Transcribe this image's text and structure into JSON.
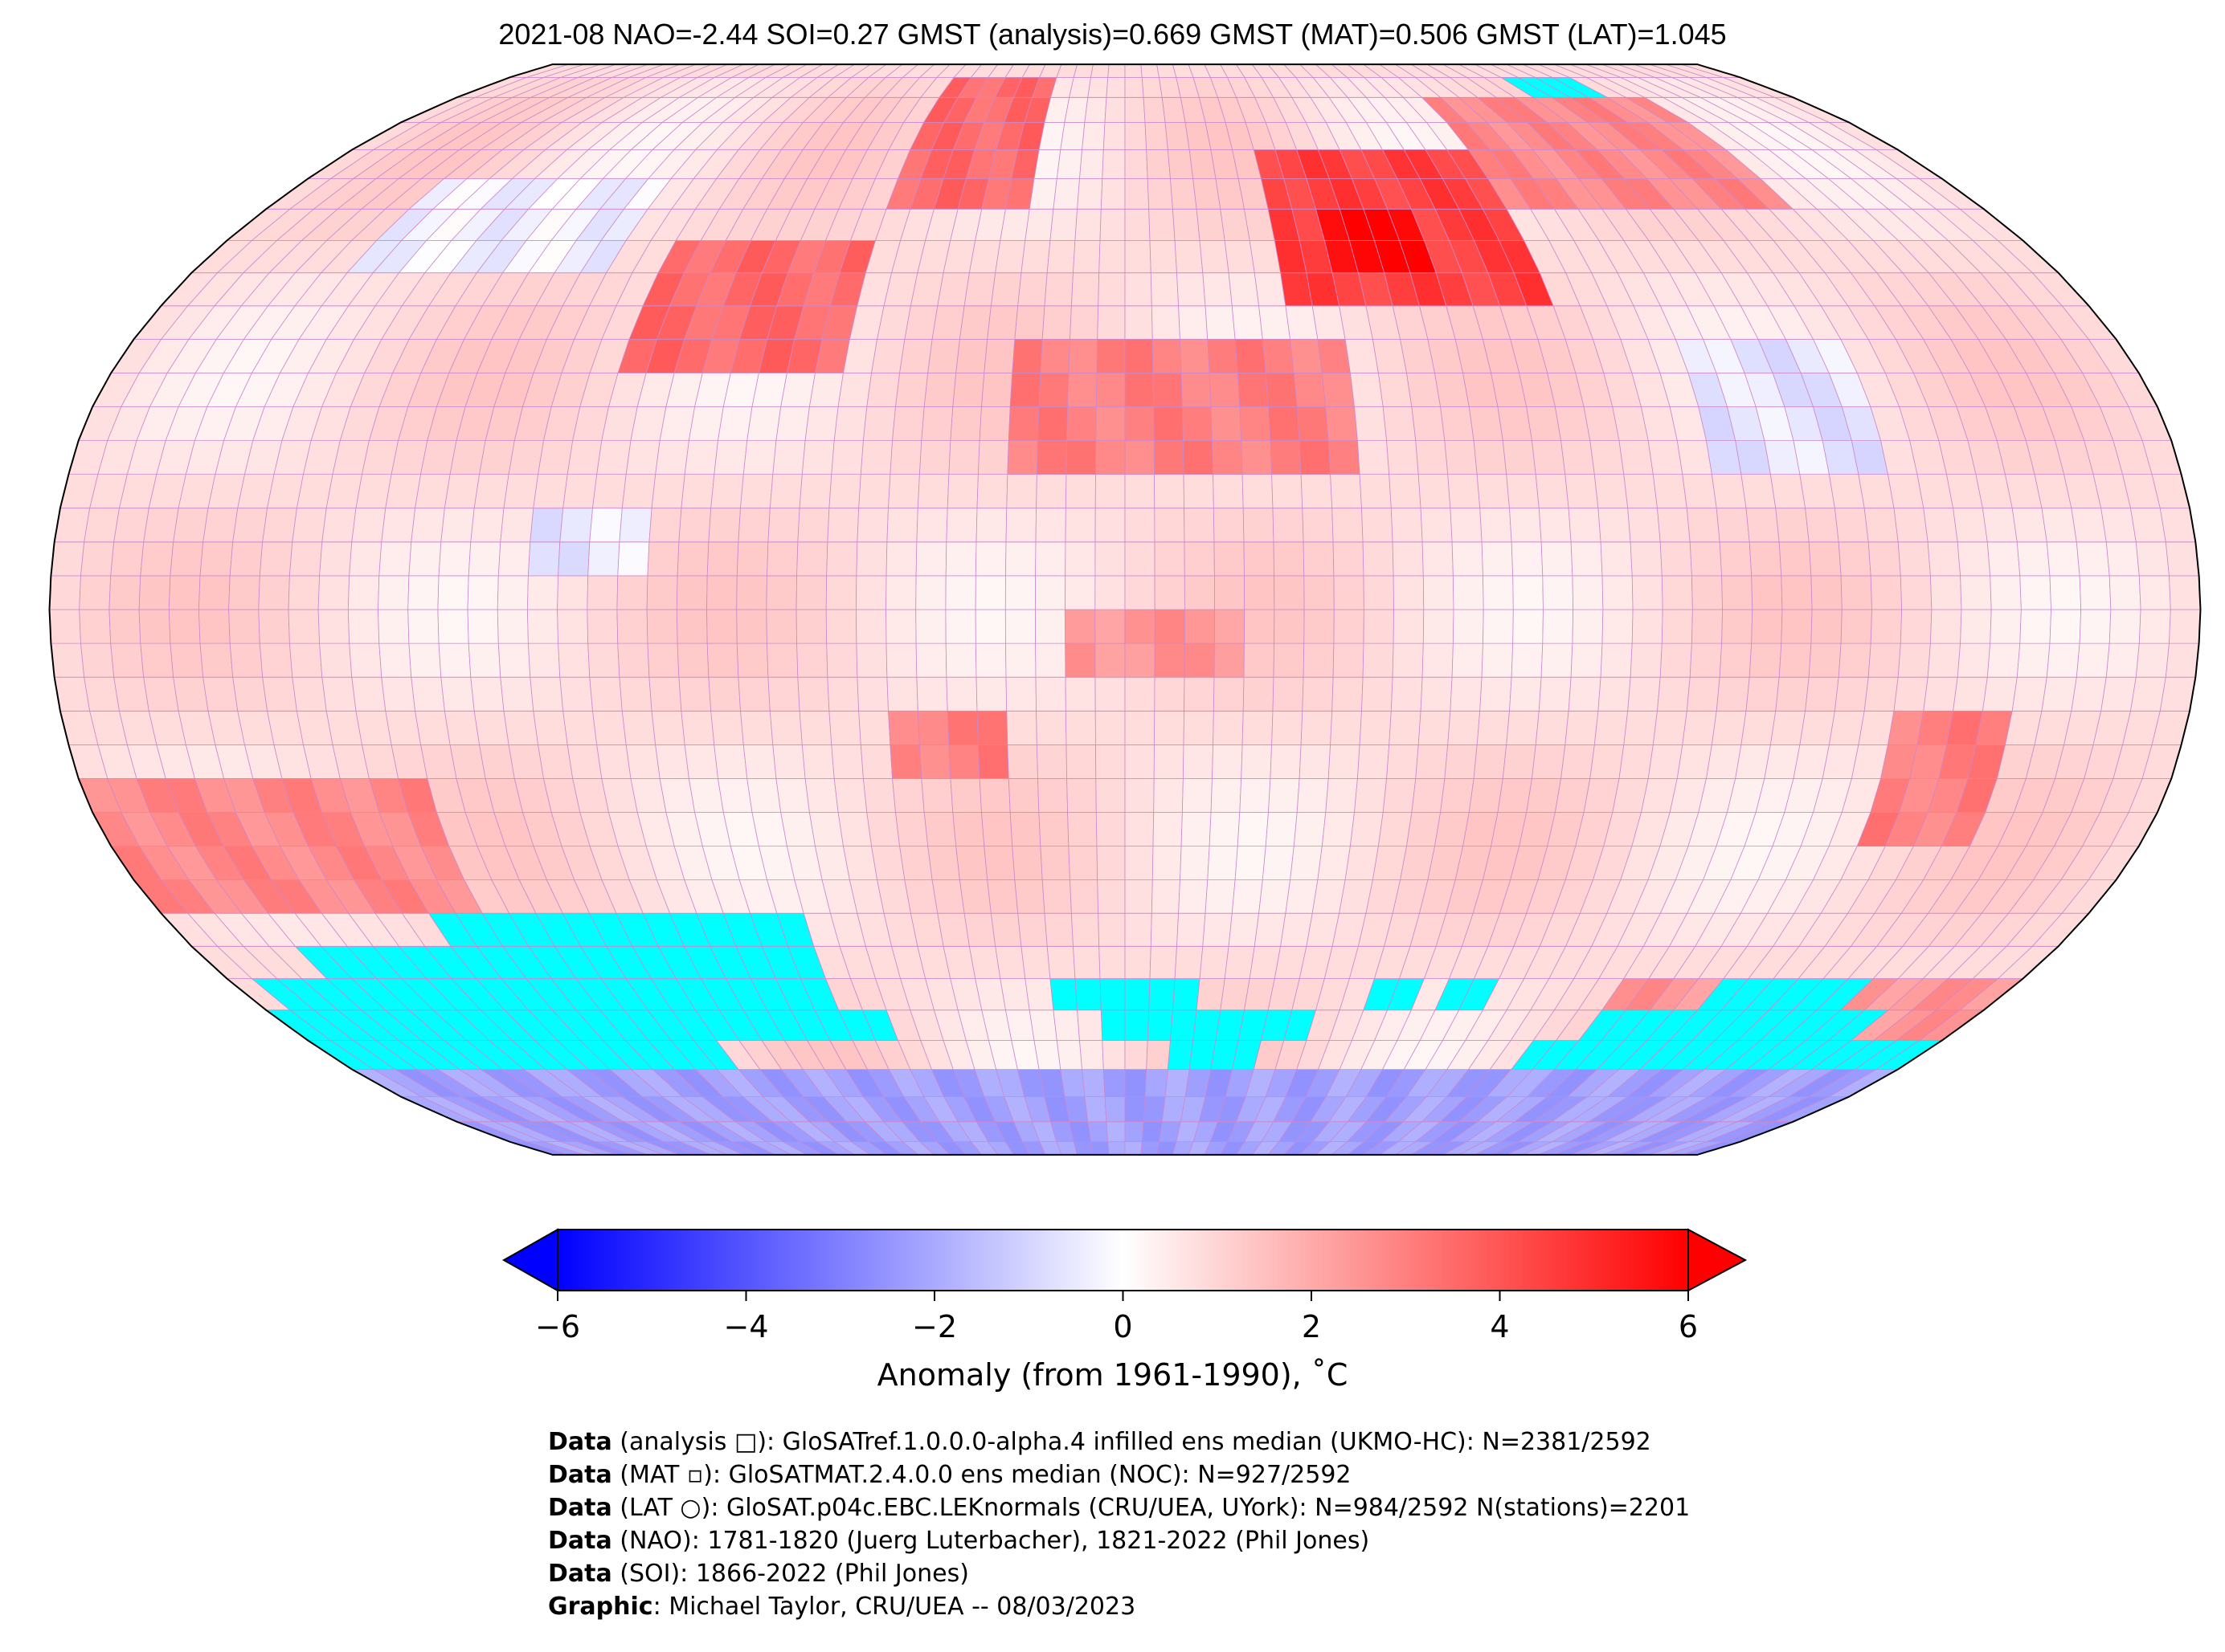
{
  "title": "2021-08 NAO=-2.44 SOI=0.27 GMST (analysis)=0.669 GMST (MAT)=0.506 GMST (LAT)=1.045",
  "map": {
    "projection": "Robinson",
    "grid_resolution_deg": 5,
    "colors": {
      "cold": "#0000ff",
      "neutral": "#ffffff",
      "warm": "#ff0000",
      "missing": "#00ffff",
      "gridline": "#cc88cc"
    },
    "base_anomaly": 0.8,
    "regions": [
      {
        "lon": [
          -180,
          180
        ],
        "lat": [
          -90,
          -70
        ],
        "anomaly": -2.2
      },
      {
        "lon": [
          100,
          180
        ],
        "lat": [
          -70,
          -55
        ],
        "anomaly": 2.5
      },
      {
        "lon": [
          30,
          80
        ],
        "lat": [
          45,
          70
        ],
        "anomaly": 4.5
      },
      {
        "lon": [
          40,
          60
        ],
        "lat": [
          50,
          60
        ],
        "anomaly": 6.0
      },
      {
        "lon": [
          -90,
          -50
        ],
        "lat": [
          35,
          55
        ],
        "anomaly": 3.5
      },
      {
        "lon": [
          -50,
          -20
        ],
        "lat": [
          60,
          85
        ],
        "anomaly": 3.5
      },
      {
        "lon": [
          80,
          140
        ],
        "lat": [
          60,
          80
        ],
        "anomaly": 2.8
      },
      {
        "lon": [
          -20,
          40
        ],
        "lat": [
          20,
          40
        ],
        "anomaly": 3.0
      },
      {
        "lon": [
          -180,
          -120
        ],
        "lat": [
          -45,
          -25
        ],
        "anomaly": 2.8
      },
      {
        "lon": [
          130,
          150
        ],
        "lat": [
          -35,
          -15
        ],
        "anomaly": 3.0
      },
      {
        "lon": [
          -100,
          -80
        ],
        "lat": [
          5,
          15
        ],
        "anomaly": -0.5
      },
      {
        "lon": [
          100,
          130
        ],
        "lat": [
          20,
          40
        ],
        "anomaly": -0.6
      },
      {
        "lon": [
          -150,
          -100
        ],
        "lat": [
          50,
          65
        ],
        "anomaly": -0.3
      },
      {
        "lon": [
          -10,
          20
        ],
        "lat": [
          -10,
          0
        ],
        "anomaly": 2.5
      },
      {
        "lon": [
          -40,
          -20
        ],
        "lat": [
          -25,
          -15
        ],
        "anomaly": 3.0
      }
    ],
    "missing_regions": [
      {
        "lon": [
          -130,
          -60
        ],
        "lat": [
          -50,
          -45
        ]
      },
      {
        "lon": [
          -160,
          -60
        ],
        "lat": [
          -55,
          -50
        ]
      },
      {
        "lon": [
          -175,
          -60
        ],
        "lat": [
          -60,
          -55
        ]
      },
      {
        "lon": [
          -180,
          -50
        ],
        "lat": [
          -65,
          -60
        ]
      },
      {
        "lon": [
          -180,
          -90
        ],
        "lat": [
          -70,
          -65
        ]
      },
      {
        "lon": [
          -15,
          15
        ],
        "lat": [
          -60,
          -55
        ]
      },
      {
        "lon": [
          -5,
          40
        ],
        "lat": [
          -65,
          -60
        ]
      },
      {
        "lon": [
          10,
          30
        ],
        "lat": [
          -70,
          -65
        ]
      },
      {
        "lon": [
          50,
          60
        ],
        "lat": [
          -60,
          -55
        ]
      },
      {
        "lon": [
          65,
          75
        ],
        "lat": [
          -60,
          -55
        ]
      },
      {
        "lon": [
          120,
          150
        ],
        "lat": [
          -60,
          -55
        ]
      },
      {
        "lon": [
          100,
          160
        ],
        "lat": [
          -65,
          -60
        ]
      },
      {
        "lon": [
          90,
          180
        ],
        "lat": [
          -70,
          -65
        ]
      },
      {
        "lon": [
          110,
          130
        ],
        "lat": [
          80,
          85
        ]
      }
    ]
  },
  "colorbar": {
    "min": -6,
    "max": 6,
    "ticks": [
      "−6",
      "−4",
      "−2",
      "0",
      "2",
      "4",
      "6"
    ],
    "tick_values": [
      -6,
      -4,
      -2,
      0,
      2,
      4,
      6
    ],
    "label": "Anomaly (from 1961-1990), ˚C"
  },
  "footer": [
    {
      "bold": "Data",
      "text": " (analysis □): GloSATref.1.0.0.0-alpha.4 infilled ens median (UKMO-HC): N=2381/2592"
    },
    {
      "bold": "Data",
      "text": " (MAT ▫): GloSATMAT.2.4.0.0 ens median (NOC): N=927/2592"
    },
    {
      "bold": "Data",
      "text": " (LAT ○): GloSAT.p04c.EBC.LEKnormals (CRU/UEA, UYork): N=984/2592 N(stations)=2201"
    },
    {
      "bold": "Data",
      "text": " (NAO): 1781-1820 (Juerg Luterbacher), 1821-2022 (Phil Jones)"
    },
    {
      "bold": "Data",
      "text": " (SOI): 1866-2022 (Phil Jones)"
    },
    {
      "bold": "Graphic",
      "text": ": Michael Taylor, CRU/UEA -- 08/03/2023"
    }
  ]
}
